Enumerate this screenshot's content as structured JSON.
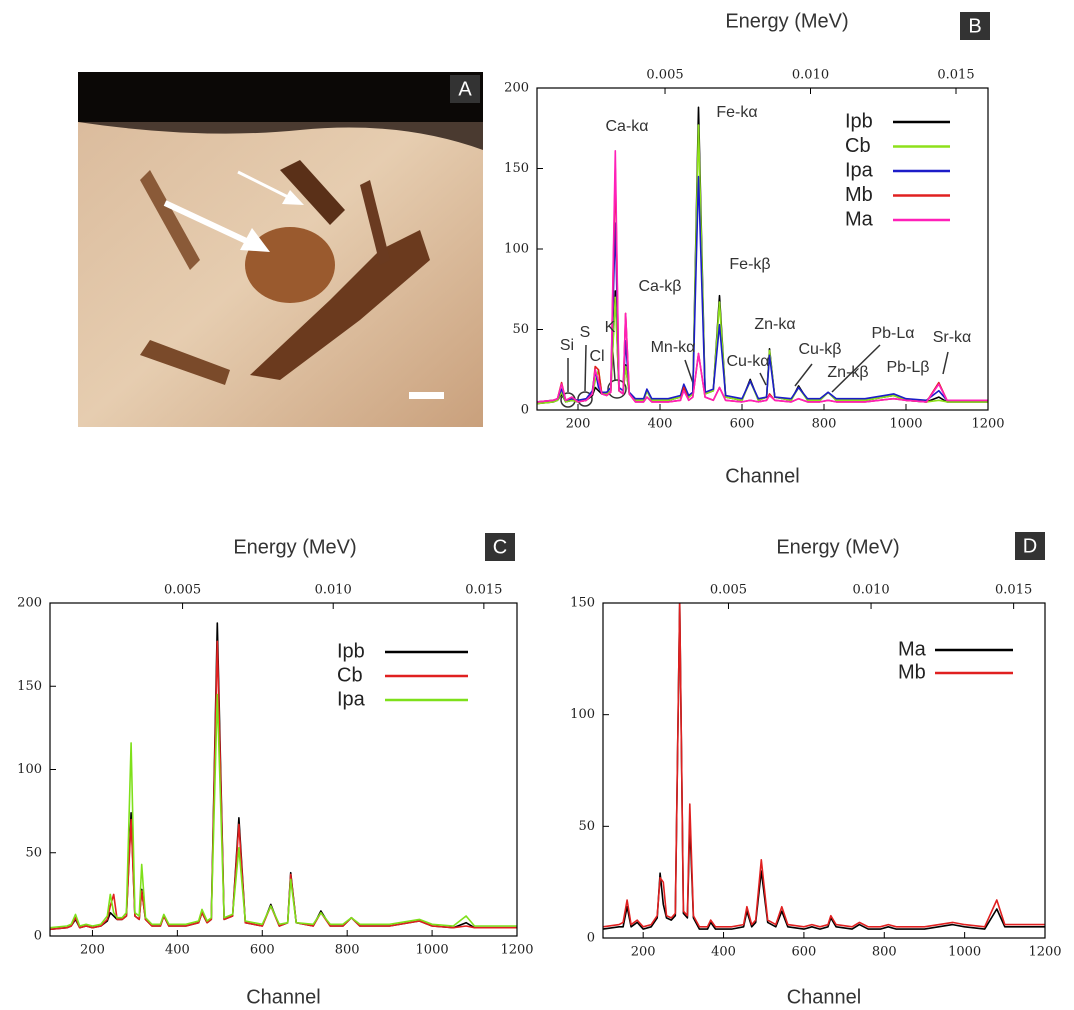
{
  "panel_a": {
    "label": "A"
  },
  "chart_data": [
    {
      "type": "line",
      "panel": "B",
      "x2label": "Energy (MeV)",
      "xlabel": "Channel",
      "x": [
        100,
        140,
        150,
        160,
        170,
        185,
        200,
        220,
        235,
        242,
        250,
        258,
        270,
        280,
        291,
        300,
        310,
        316,
        325,
        340,
        360,
        368,
        380,
        420,
        450,
        458,
        470,
        480,
        494,
        510,
        530,
        545,
        560,
        600,
        620,
        640,
        660,
        667,
        680,
        720,
        738,
        760,
        790,
        810,
        830,
        900,
        970,
        1000,
        1050,
        1080,
        1100,
        1150,
        1200
      ],
      "xlim": [
        100,
        1200
      ],
      "xticks": [
        200,
        400,
        600,
        800,
        1000,
        1200
      ],
      "x2lim": [
        0.0006,
        0.0161
      ],
      "x2ticks": [
        0.005,
        {
          "value": 0.01,
          "label": "0.010"
        },
        0.015
      ],
      "ylim": [
        0,
        200
      ],
      "yticks": [
        0,
        50,
        100,
        150,
        200
      ],
      "grid": false,
      "legend": "upper right",
      "series": [
        {
          "name": "Ipb",
          "color": "#000000",
          "values": [
            4,
            5,
            6,
            10,
            5,
            6,
            5,
            6,
            9,
            14,
            12,
            10,
            10,
            12,
            74,
            12,
            10,
            28,
            10,
            6,
            6,
            12,
            6,
            6,
            8,
            14,
            8,
            10,
            188,
            10,
            12,
            71,
            8,
            6,
            19,
            6,
            8,
            38,
            8,
            6,
            15,
            6,
            6,
            11,
            6,
            6,
            9,
            6,
            5,
            8,
            5,
            5,
            5
          ]
        },
        {
          "name": "Cb",
          "color": "#8ee01a",
          "values": [
            4,
            5,
            6,
            11,
            5,
            6,
            5,
            6,
            10,
            18,
            25,
            10,
            10,
            12,
            70,
            12,
            10,
            27,
            10,
            6,
            6,
            12,
            6,
            6,
            8,
            14,
            8,
            10,
            177,
            10,
            12,
            67,
            8,
            6,
            18,
            6,
            8,
            37,
            8,
            6,
            14,
            6,
            6,
            11,
            6,
            6,
            9,
            6,
            5,
            6,
            5,
            5,
            5
          ]
        },
        {
          "name": "Ipa",
          "color": "#1c1cc8",
          "values": [
            5,
            6,
            7,
            13,
            6,
            7,
            6,
            7,
            12,
            25,
            14,
            11,
            11,
            14,
            116,
            14,
            12,
            43,
            11,
            7,
            7,
            13,
            7,
            7,
            9,
            16,
            9,
            11,
            145,
            11,
            13,
            53,
            9,
            7,
            18,
            7,
            8,
            34,
            8,
            7,
            14,
            7,
            7,
            11,
            7,
            7,
            10,
            7,
            6,
            12,
            6,
            6,
            6
          ]
        },
        {
          "name": "Mb",
          "color": "#e02020",
          "values": [
            5,
            6,
            7,
            17,
            6,
            8,
            5,
            6,
            10,
            27,
            25,
            10,
            9,
            11,
            150,
            12,
            10,
            60,
            10,
            5,
            5,
            8,
            5,
            5,
            6,
            14,
            6,
            8,
            35,
            8,
            6,
            14,
            6,
            5,
            6,
            5,
            6,
            10,
            6,
            5,
            7,
            5,
            5,
            6,
            5,
            5,
            7,
            6,
            5,
            17,
            6,
            6,
            6
          ]
        },
        {
          "name": "Ma",
          "color": "#ff20b8",
          "values": [
            5,
            6,
            7,
            16,
            6,
            8,
            5,
            6,
            10,
            25,
            18,
            10,
            9,
            11,
            161,
            12,
            10,
            60,
            10,
            5,
            5,
            8,
            5,
            5,
            6,
            12,
            6,
            8,
            35,
            8,
            6,
            14,
            6,
            5,
            6,
            5,
            6,
            9,
            6,
            5,
            7,
            5,
            5,
            6,
            5,
            5,
            7,
            6,
            5,
            16,
            6,
            6,
            6
          ]
        }
      ],
      "annotations": [
        "Ca-kα",
        "Fe-kα",
        "Ca-kβ",
        "Fe-kβ",
        "Zn-kα",
        "Mn-kα",
        "Cu-kα",
        "Cu-kβ",
        "Pb-Lα",
        "Zn-kβ",
        "Pb-Lβ",
        "Sr-kα",
        "Si",
        "S",
        "Cl",
        "K"
      ]
    },
    {
      "type": "line",
      "panel": "C",
      "x2label": "Energy (MeV)",
      "xlabel": "Channel",
      "x": [
        100,
        140,
        150,
        160,
        170,
        185,
        200,
        220,
        235,
        242,
        250,
        258,
        270,
        280,
        291,
        300,
        310,
        316,
        325,
        340,
        360,
        368,
        380,
        420,
        450,
        458,
        470,
        480,
        494,
        510,
        530,
        545,
        560,
        600,
        620,
        640,
        660,
        667,
        680,
        720,
        738,
        760,
        790,
        810,
        830,
        900,
        970,
        1000,
        1050,
        1080,
        1100,
        1150,
        1200
      ],
      "xlim": [
        100,
        1200
      ],
      "xticks": [
        200,
        400,
        600,
        800,
        1000,
        1200
      ],
      "x2lim": [
        0.0006,
        0.0161
      ],
      "x2ticks": [
        0.005,
        {
          "value": 0.01,
          "label": "0.010"
        },
        0.015
      ],
      "ylim": [
        0,
        200
      ],
      "yticks": [
        0,
        50,
        100,
        150,
        200
      ],
      "grid": false,
      "legend": "upper right",
      "series": [
        {
          "name": "Ipb",
          "color": "#000000",
          "values": [
            4,
            5,
            6,
            10,
            5,
            6,
            5,
            6,
            9,
            14,
            12,
            10,
            10,
            12,
            74,
            12,
            10,
            28,
            10,
            6,
            6,
            12,
            6,
            6,
            8,
            14,
            8,
            10,
            188,
            10,
            12,
            71,
            8,
            6,
            19,
            6,
            8,
            38,
            8,
            6,
            15,
            6,
            6,
            11,
            6,
            6,
            9,
            6,
            5,
            8,
            5,
            5,
            5
          ]
        },
        {
          "name": "Cb",
          "color": "#e02020",
          "values": [
            4,
            5,
            6,
            11,
            5,
            6,
            5,
            6,
            10,
            18,
            25,
            10,
            10,
            12,
            70,
            12,
            10,
            27,
            10,
            6,
            6,
            12,
            6,
            6,
            8,
            14,
            8,
            10,
            177,
            10,
            12,
            67,
            8,
            6,
            18,
            6,
            8,
            37,
            8,
            6,
            14,
            6,
            6,
            11,
            6,
            6,
            9,
            6,
            5,
            6,
            5,
            5,
            5
          ]
        },
        {
          "name": "Ipa",
          "color": "#7ee01a",
          "values": [
            5,
            6,
            7,
            13,
            6,
            7,
            6,
            7,
            12,
            25,
            14,
            11,
            11,
            14,
            116,
            14,
            12,
            43,
            11,
            7,
            7,
            13,
            7,
            7,
            9,
            16,
            9,
            11,
            145,
            11,
            13,
            53,
            9,
            7,
            18,
            7,
            8,
            34,
            8,
            7,
            14,
            7,
            7,
            11,
            7,
            7,
            10,
            7,
            6,
            12,
            6,
            6,
            6
          ]
        }
      ]
    },
    {
      "type": "line",
      "panel": "D",
      "x2label": "Energy (MeV)",
      "xlabel": "Channel",
      "x": [
        100,
        140,
        150,
        160,
        170,
        185,
        200,
        220,
        235,
        242,
        250,
        258,
        270,
        280,
        291,
        300,
        310,
        316,
        325,
        340,
        360,
        368,
        380,
        420,
        450,
        458,
        470,
        480,
        494,
        510,
        530,
        545,
        560,
        600,
        620,
        640,
        660,
        667,
        680,
        720,
        738,
        760,
        790,
        810,
        830,
        900,
        970,
        1000,
        1050,
        1080,
        1100,
        1150,
        1200
      ],
      "xlim": [
        100,
        1200
      ],
      "xticks": [
        200,
        400,
        600,
        800,
        1000,
        1200
      ],
      "x2lim": [
        0.0006,
        0.0161
      ],
      "x2ticks": [
        0.005,
        {
          "value": 0.01,
          "label": "0.010"
        },
        0.015
      ],
      "ylim": [
        0,
        150
      ],
      "yticks": [
        0,
        50,
        100,
        150
      ],
      "grid": false,
      "legend": "upper right",
      "series": [
        {
          "name": "Ma",
          "color": "#000000",
          "values": [
            4,
            5,
            5,
            14,
            5,
            7,
            4,
            5,
            9,
            29,
            15,
            9,
            8,
            10,
            150,
            11,
            9,
            52,
            9,
            4,
            4,
            7,
            4,
            4,
            5,
            12,
            5,
            7,
            30,
            7,
            5,
            12,
            5,
            4,
            5,
            4,
            5,
            9,
            5,
            4,
            6,
            4,
            4,
            5,
            4,
            4,
            6,
            5,
            4,
            13,
            5,
            5,
            5
          ]
        },
        {
          "name": "Mb",
          "color": "#e02020",
          "values": [
            5,
            6,
            7,
            17,
            6,
            8,
            5,
            6,
            10,
            27,
            25,
            10,
            9,
            11,
            150,
            12,
            10,
            60,
            10,
            5,
            5,
            8,
            5,
            5,
            6,
            14,
            6,
            8,
            35,
            8,
            6,
            14,
            6,
            5,
            6,
            5,
            6,
            10,
            6,
            5,
            7,
            5,
            5,
            6,
            5,
            5,
            7,
            6,
            5,
            17,
            6,
            6,
            6
          ]
        }
      ]
    }
  ]
}
